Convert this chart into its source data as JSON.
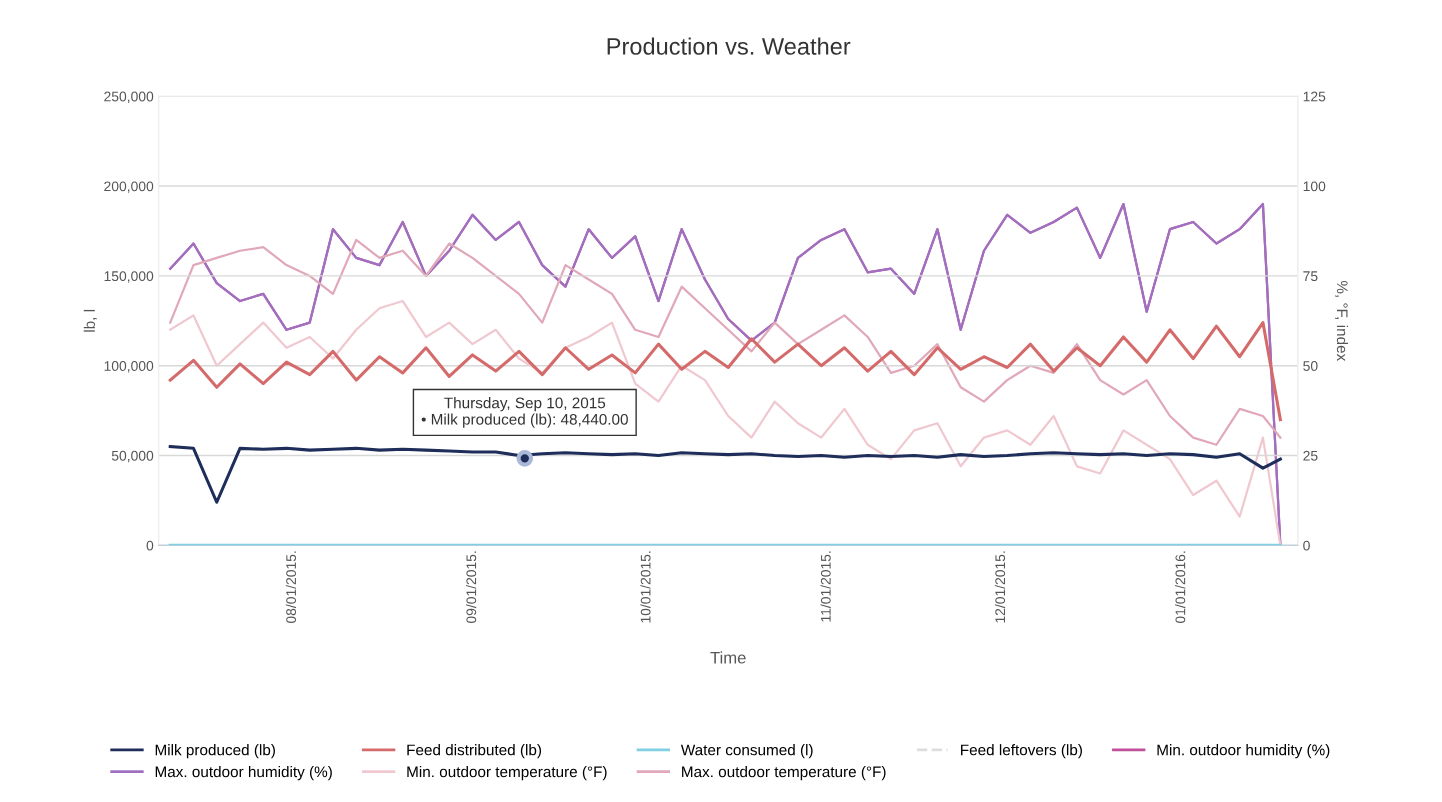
{
  "chart_data": {
    "type": "line",
    "title": "Production vs. Weather",
    "xlabel": "Time",
    "ylabel": "lb, l",
    "y2label": "%, °F, index",
    "x": [
      "2015-07-11",
      "2015-07-15",
      "2015-07-19",
      "2015-07-23",
      "2015-07-27",
      "2015-07-31",
      "2015-08-04",
      "2015-08-08",
      "2015-08-12",
      "2015-08-16",
      "2015-08-20",
      "2015-08-24",
      "2015-08-28",
      "2015-09-01",
      "2015-09-05",
      "2015-09-09",
      "2015-09-13",
      "2015-09-17",
      "2015-09-21",
      "2015-09-25",
      "2015-09-29",
      "2015-10-03",
      "2015-10-07",
      "2015-10-11",
      "2015-10-15",
      "2015-10-19",
      "2015-10-23",
      "2015-10-27",
      "2015-10-31",
      "2015-11-04",
      "2015-11-08",
      "2015-11-12",
      "2015-11-16",
      "2015-11-20",
      "2015-11-24",
      "2015-11-28",
      "2015-12-02",
      "2015-12-06",
      "2015-12-10",
      "2015-12-14",
      "2015-12-18",
      "2015-12-22",
      "2015-12-26",
      "2015-12-30",
      "2016-01-03",
      "2016-01-07",
      "2016-01-11",
      "2016-01-15",
      "2016-01-18"
    ],
    "xlim": [
      "2015-07-09",
      "2016-01-21"
    ],
    "xticks": [
      {
        "value": "2015-08-01",
        "label": "08/01/2015."
      },
      {
        "value": "2015-09-01",
        "label": "09/01/2015."
      },
      {
        "value": "2015-10-01",
        "label": "10/01/2015."
      },
      {
        "value": "2015-11-01",
        "label": "11/01/2015."
      },
      {
        "value": "2015-12-01",
        "label": "12/01/2015."
      },
      {
        "value": "2016-01-01",
        "label": "01/01/2016."
      }
    ],
    "ylim": [
      0,
      250000
    ],
    "yticks": [
      {
        "value": 0,
        "label": "0"
      },
      {
        "value": 50000,
        "label": "50,000"
      },
      {
        "value": 100000,
        "label": "100,000"
      },
      {
        "value": 150000,
        "label": "150,000"
      },
      {
        "value": 200000,
        "label": "200,000"
      },
      {
        "value": 250000,
        "label": "250,000"
      }
    ],
    "y2lim": [
      0,
      125
    ],
    "y2ticks": [
      0,
      25,
      50,
      75,
      100,
      125
    ],
    "grid": "y",
    "legend": "bottom",
    "marker": "none",
    "series": [
      {
        "name": "Milk produced (lb)",
        "color": "#1f2d5a",
        "values": [
          55000,
          54000,
          24000,
          54000,
          53500,
          54000,
          53000,
          53500,
          54000,
          53000,
          53500,
          53000,
          52500,
          52000,
          52000,
          50000,
          51000,
          51500,
          51000,
          50500,
          51000,
          50000,
          51500,
          51000,
          50500,
          51000,
          50000,
          49500,
          50000,
          49000,
          50000,
          49500,
          50000,
          49000,
          50500,
          49500,
          50000,
          51000,
          51500,
          51000,
          50500,
          51000,
          50000,
          51000,
          50500,
          49000,
          51000,
          43000,
          48000
        ]
      },
      {
        "name": "Feed distributed (lb)",
        "color": "#d46a6a",
        "values": [
          92000,
          103000,
          88000,
          101000,
          90000,
          102000,
          95000,
          108000,
          92000,
          105000,
          96000,
          110000,
          94000,
          106000,
          97000,
          108000,
          95000,
          110000,
          98000,
          106000,
          96000,
          112000,
          98000,
          108000,
          99000,
          115000,
          102000,
          112000,
          100000,
          110000,
          97000,
          108000,
          95000,
          110000,
          98000,
          105000,
          99000,
          112000,
          97000,
          110000,
          100000,
          116000,
          102000,
          120000,
          104000,
          122000,
          105000,
          124000,
          70000
        ]
      },
      {
        "name": "Water consumed (l)",
        "color": "#7fd0e0",
        "values": [
          0,
          0,
          0,
          0,
          0,
          0,
          0,
          0,
          0,
          0,
          0,
          0,
          0,
          0,
          0,
          0,
          0,
          0,
          0,
          0,
          0,
          0,
          0,
          0,
          0,
          0,
          0,
          0,
          0,
          0,
          0,
          0,
          0,
          0,
          0,
          0,
          0,
          0,
          0,
          0,
          0,
          0,
          0,
          0,
          0,
          0,
          0,
          0,
          0
        ]
      },
      {
        "name": "Feed leftovers (lb)",
        "color": "#dddddd",
        "line_style": "dashed",
        "values": [
          null,
          null,
          null,
          null,
          null,
          null,
          null,
          null,
          null,
          null,
          null,
          null,
          null,
          null,
          null,
          null,
          null,
          null,
          null,
          null,
          null,
          null,
          null,
          null,
          null,
          null,
          null,
          null,
          null,
          null,
          null,
          null,
          null,
          null,
          null,
          null,
          null,
          null,
          null,
          null,
          null,
          null,
          null,
          null,
          null,
          null,
          null,
          null,
          null
        ]
      },
      {
        "name": "Min. outdoor humidity (%)",
        "color": "#c0509a",
        "axis": "y2",
        "values": [
          77,
          84,
          73,
          68,
          70,
          60,
          62,
          88,
          80,
          78,
          90,
          75,
          82,
          92,
          85,
          90,
          78,
          72,
          88,
          80,
          86,
          68,
          88,
          74,
          63,
          57,
          62,
          80,
          85,
          88,
          76,
          77,
          70,
          88,
          60,
          82,
          92,
          87,
          90,
          94,
          80,
          95,
          65,
          88,
          90,
          84,
          88,
          95,
          0
        ]
      },
      {
        "name": "Max. outdoor humidity (%)",
        "color": "#a070c0",
        "axis": "y2",
        "values": [
          77,
          84,
          73,
          68,
          70,
          60,
          62,
          88,
          80,
          78,
          90,
          75,
          82,
          92,
          85,
          90,
          78,
          72,
          88,
          80,
          86,
          68,
          88,
          74,
          63,
          57,
          62,
          80,
          85,
          88,
          76,
          77,
          70,
          88,
          60,
          82,
          92,
          87,
          90,
          94,
          80,
          95,
          65,
          88,
          90,
          84,
          88,
          95,
          0
        ]
      },
      {
        "name": "Min. outdoor temperature (°F)",
        "color": "#f0c8d0",
        "axis": "y2",
        "values": [
          60,
          64,
          50,
          56,
          62,
          55,
          58,
          52,
          60,
          66,
          68,
          58,
          62,
          56,
          60,
          52,
          48,
          55,
          58,
          62,
          45,
          40,
          50,
          46,
          36,
          30,
          40,
          34,
          30,
          38,
          28,
          24,
          32,
          34,
          22,
          30,
          32,
          28,
          36,
          22,
          20,
          32,
          28,
          24,
          14,
          18,
          8,
          30,
          0
        ]
      },
      {
        "name": "Max. outdoor temperature (°F)",
        "color": "#e0a8b8",
        "axis": "y2",
        "values": [
          62,
          78,
          80,
          82,
          83,
          78,
          75,
          70,
          85,
          80,
          82,
          75,
          84,
          80,
          75,
          70,
          62,
          78,
          74,
          70,
          60,
          58,
          72,
          66,
          60,
          54,
          62,
          56,
          60,
          64,
          58,
          48,
          50,
          56,
          44,
          40,
          46,
          50,
          48,
          56,
          46,
          42,
          46,
          36,
          30,
          28,
          38,
          36,
          30
        ]
      }
    ],
    "annotations": [
      {
        "text": "Thursday, Sep 10, 2015\n• Milk produced (lb): 48,440.00",
        "x": "2015-09-10",
        "y": 48440
      }
    ]
  }
}
